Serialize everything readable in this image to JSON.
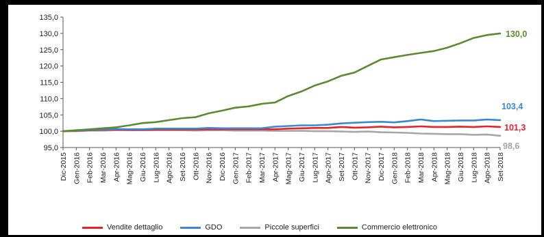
{
  "chart_data": {
    "type": "line",
    "categories": [
      "Dic-2015",
      "Gen-2016",
      "Feb-2016",
      "Mar-2016",
      "Apr-2016",
      "Mag-2016",
      "Giu-2016",
      "Lug-2016",
      "Ago-2016",
      "Set-2016",
      "Ott-2016",
      "Nov-2016",
      "Dic-2016",
      "Gen-2017",
      "Feb-2017",
      "Mar-2017",
      "Apr-2017",
      "Mag-2017",
      "Giu-2017",
      "Lug-2017",
      "Ago-2017",
      "Set-2017",
      "Ott-2017",
      "Nov-2017",
      "Dic-2017",
      "Gen-2018",
      "Feb-2018",
      "Mar-2018",
      "Apr-2018",
      "Mag-2018",
      "Giu-2018",
      "Lug-2018",
      "Ago-2018",
      "Set-2018"
    ],
    "ylim": [
      95,
      135
    ],
    "yticks": [
      "95,0",
      "100,0",
      "105,0",
      "110,0",
      "115,0",
      "120,0",
      "125,0",
      "130,0",
      "135,0"
    ],
    "series": [
      {
        "name": "Vendite dettaglio",
        "color": "#e8202a",
        "end_label": "101,3",
        "values": [
          100.0,
          100.1,
          100.3,
          100.4,
          100.5,
          100.4,
          100.4,
          100.5,
          100.5,
          100.5,
          100.5,
          100.6,
          100.6,
          100.6,
          100.6,
          100.6,
          100.6,
          100.8,
          100.9,
          101.0,
          101.0,
          101.3,
          101.1,
          101.2,
          101.4,
          101.2,
          101.3,
          101.5,
          101.3,
          101.3,
          101.4,
          101.3,
          101.5,
          101.3
        ]
      },
      {
        "name": "GDO",
        "color": "#3a87d6",
        "end_label": "103,4",
        "values": [
          100.0,
          100.2,
          100.4,
          100.6,
          100.7,
          100.6,
          100.6,
          100.8,
          100.8,
          100.8,
          100.8,
          101.0,
          100.9,
          100.9,
          100.9,
          100.9,
          101.4,
          101.6,
          101.8,
          101.8,
          102.0,
          102.4,
          102.6,
          102.8,
          102.9,
          102.7,
          103.1,
          103.6,
          103.1,
          103.2,
          103.3,
          103.3,
          103.6,
          103.4
        ]
      },
      {
        "name": "Piccole superfici",
        "color": "#a6a6a6",
        "end_label": "98,6",
        "values": [
          100.0,
          100.0,
          100.2,
          100.2,
          100.3,
          100.3,
          100.3,
          100.3,
          100.3,
          100.3,
          100.2,
          100.3,
          100.3,
          100.2,
          100.2,
          100.2,
          100.1,
          100.1,
          100.1,
          100.0,
          100.0,
          99.9,
          99.8,
          99.9,
          99.7,
          99.6,
          99.5,
          99.3,
          99.2,
          99.1,
          99.1,
          98.9,
          99.0,
          98.6
        ]
      },
      {
        "name": "Commercio elettronico",
        "color": "#5c8a2e",
        "end_label": "130,0",
        "values": [
          100.0,
          100.3,
          100.6,
          100.9,
          101.2,
          101.8,
          102.5,
          102.8,
          103.4,
          104.0,
          104.3,
          105.5,
          106.3,
          107.2,
          107.6,
          108.4,
          108.8,
          110.8,
          112.2,
          114.0,
          115.3,
          117.0,
          118.0,
          120.0,
          122.0,
          122.7,
          123.4,
          124.0,
          124.6,
          125.6,
          127.0,
          128.6,
          129.5,
          130.0
        ]
      }
    ]
  }
}
